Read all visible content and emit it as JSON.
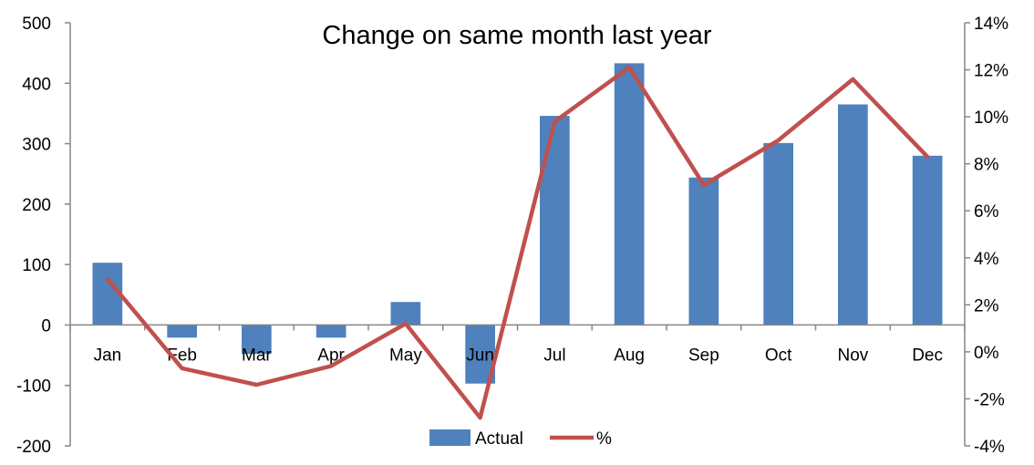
{
  "chart_data": {
    "type": "bar",
    "title": "Change on same month last year",
    "categories": [
      "Jan",
      "Feb",
      "Mar",
      "Apr",
      "May",
      "Jun",
      "Jul",
      "Aug",
      "Sep",
      "Oct",
      "Nov",
      "Dec"
    ],
    "series": [
      {
        "name": "Actual",
        "type": "bar",
        "axis": "left",
        "color": "#4F81BD",
        "values": [
          103,
          -21,
          -48,
          -21,
          38,
          -97,
          346,
          433,
          244,
          301,
          365,
          280
        ]
      },
      {
        "name": "%",
        "type": "line",
        "axis": "right",
        "color": "#C0504D",
        "values": [
          3.1,
          -0.7,
          -1.4,
          -0.6,
          1.2,
          -2.8,
          9.8,
          12.1,
          7.1,
          9.0,
          11.6,
          8.3
        ]
      }
    ],
    "y_left": {
      "range": [
        -200,
        500
      ],
      "ticks": [
        500,
        400,
        300,
        200,
        100,
        0,
        -100,
        -200
      ],
      "tick_labels": [
        "500",
        "400",
        "300",
        "200",
        "100",
        "0",
        "-100",
        "-200"
      ]
    },
    "y_right": {
      "range": [
        -4,
        14
      ],
      "unit": "%",
      "ticks": [
        14,
        12,
        10,
        8,
        6,
        4,
        2,
        0,
        -2,
        -4
      ],
      "tick_labels": [
        "14%",
        "12%",
        "10%",
        "8%",
        "6%",
        "4%",
        "2%",
        "0%",
        "-2%",
        "-4%"
      ]
    },
    "grid": false,
    "legend_position": "bottom"
  }
}
